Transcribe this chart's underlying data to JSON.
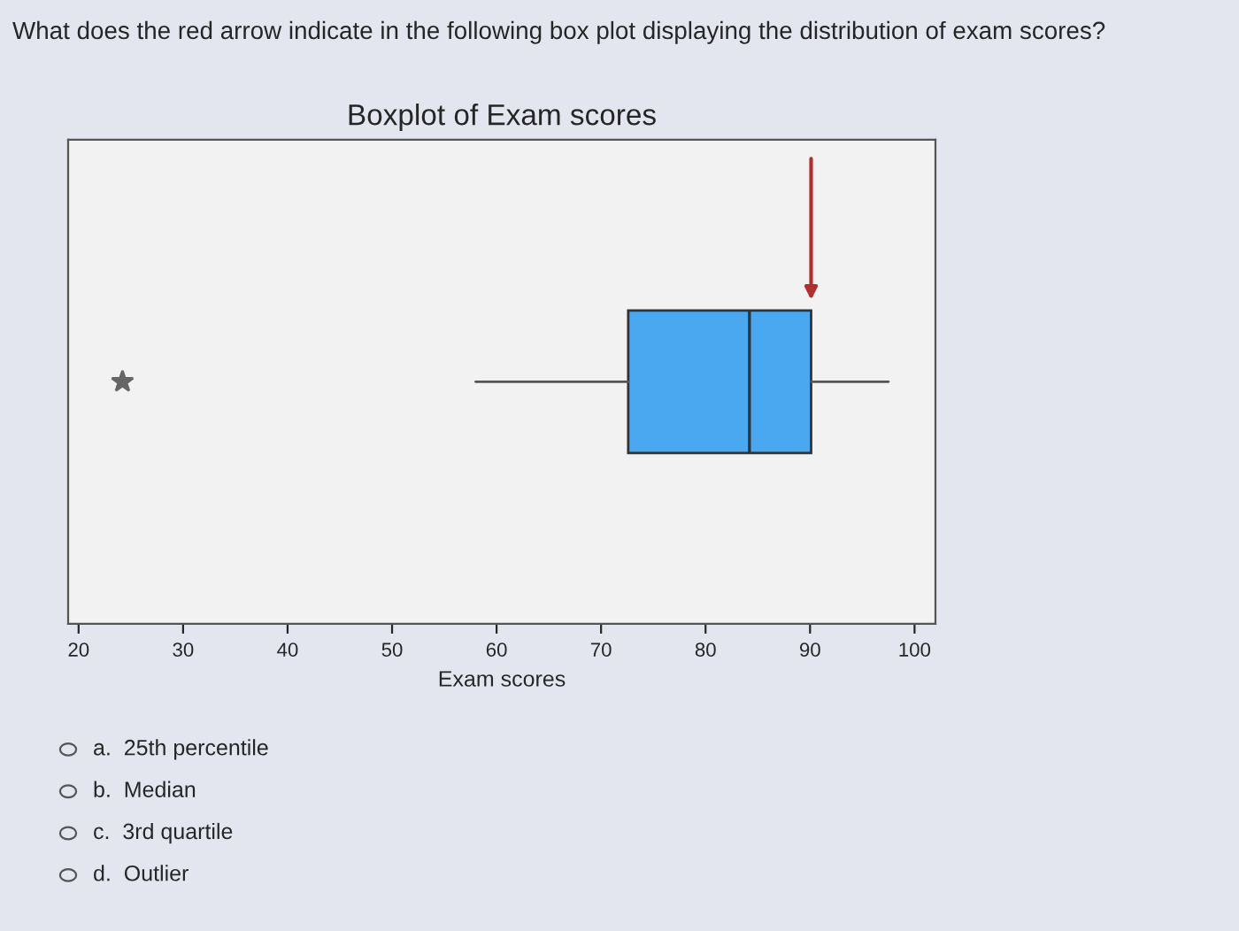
{
  "chart_data": {
    "type": "box",
    "orientation": "horizontal",
    "title": "Boxplot of Exam scores",
    "xlabel": "Exam scores",
    "categories": [
      null
    ],
    "boxes": [
      {
        "low": 58,
        "q1": 72.6,
        "median": 84.2,
        "q3": 90.1,
        "high": 97.5,
        "outliers": [
          24.2
        ]
      }
    ],
    "color": "#4aa8f0",
    "xlim": [
      19,
      102
    ],
    "xticks": [
      20,
      30,
      40,
      50,
      60,
      70,
      80,
      90,
      100
    ],
    "annotations": [
      "What does the red arrow indicate in the following box plot displaying the distribution of exam scores?",
      "a.  25th percentile",
      "b.  Median",
      "c.  3rd quartile",
      "d.  Outlier"
    ]
  }
}
